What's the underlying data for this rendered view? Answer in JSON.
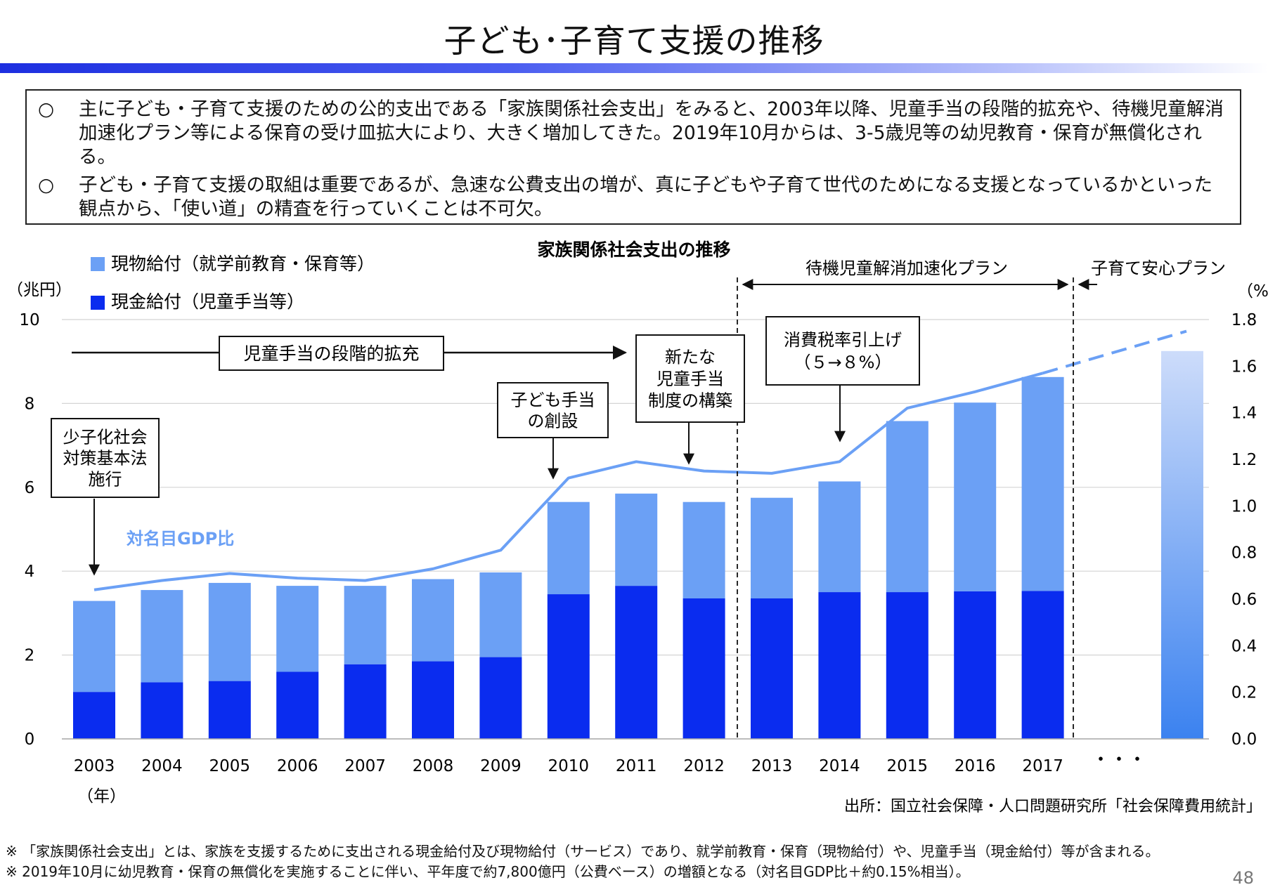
{
  "page": {
    "title": "子ども･子育て支援の推移",
    "page_number": "48"
  },
  "summary": [
    {
      "bullet": "○",
      "text": "主に子ども・子育て支援のための公的支出である「家族関係社会支出」をみると、2003年以降、児童手当の段階的拡充や、待機児童解消加速化プラン等による保育の受け皿拡大により、大きく増加してきた。2019年10月からは、3-5歳児等の幼児教育・保育が無償化される。"
    },
    {
      "bullet": "○",
      "text": "子ども・子育て支援の取組は重要であるが、急速な公費支出の増が、真に子どもや子育て世代のためになる支援となっているかといった観点から、「使い道」の精査を行っていくことは不可欠。"
    }
  ],
  "chart_data": {
    "type": "bar",
    "title": "家族関係社会支出の推移",
    "stacked": true,
    "left_unit": "（兆円）",
    "right_unit": "（%）",
    "xunit": "（年）",
    "categories": [
      "2003",
      "2004",
      "2005",
      "2006",
      "2007",
      "2008",
      "2009",
      "2010",
      "2011",
      "2012",
      "2013",
      "2014",
      "2015",
      "2016",
      "2017"
    ],
    "ellipsis_label": "・・・",
    "series": [
      {
        "name": "現金給付（児童手当等）",
        "color": "#0a2cef",
        "values": [
          1.12,
          1.35,
          1.38,
          1.6,
          1.78,
          1.85,
          1.95,
          3.45,
          3.65,
          3.35,
          3.35,
          3.5,
          3.5,
          3.52,
          3.53
        ]
      },
      {
        "name": "現物給付（就学前教育・保育等）",
        "color": "#6ba0f5",
        "values": [
          2.17,
          2.2,
          2.34,
          2.05,
          1.87,
          1.96,
          2.02,
          2.2,
          2.2,
          2.3,
          2.4,
          2.64,
          4.08,
          4.5,
          5.1
        ]
      }
    ],
    "line": {
      "name": "対名目GDP比",
      "color": "#6ba0f5",
      "values": [
        0.64,
        0.68,
        0.71,
        0.69,
        0.68,
        0.73,
        0.81,
        1.12,
        1.19,
        1.15,
        1.14,
        1.19,
        1.42,
        1.49,
        1.57
      ],
      "projected_to": 1.75
    },
    "future_bar": {
      "value": 9.25,
      "color_top": "#cddcfa",
      "color_bottom": "#3b82f0"
    },
    "yleft": {
      "ticks": [
        "0",
        "2",
        "4",
        "6",
        "8",
        "10"
      ],
      "max": 10
    },
    "yright": {
      "ticks": [
        "0.0",
        "0.2",
        "0.4",
        "0.6",
        "0.8",
        "1.0",
        "1.2",
        "1.4",
        "1.6",
        "1.8"
      ],
      "max": 1.8
    },
    "grid": true,
    "periods": [
      {
        "label": "待機児童解消加速化プラン"
      },
      {
        "label": "子育て安心プラン"
      }
    ],
    "annotations": [
      {
        "lines": [
          "児童手当の段階的拡充"
        ]
      },
      {
        "lines": [
          "少子化社会",
          "対策基本法",
          "施行"
        ]
      },
      {
        "lines": [
          "子ども手当",
          "の創設"
        ]
      },
      {
        "lines": [
          "新たな",
          "児童手当",
          "制度の構築"
        ]
      },
      {
        "lines": [
          "消費税率引上げ",
          "（５→８%）"
        ]
      }
    ],
    "source": "出所：国立社会保障・人口問題研究所「社会保障費用統計」"
  },
  "notes": [
    "※ 「家族関係社会支出」とは、家族を支援するために支出される現金給付及び現物給付（サービス）であり、就学前教育・保育（現物給付）や、児童手当（現金給付）等が含まれる。",
    "※ 2019年10月に幼児教育・保育の無償化を実施することに伴い、平年度で約7,800億円（公費ベース）の増額となる（対名目GDP比＋約0.15%相当）。"
  ]
}
